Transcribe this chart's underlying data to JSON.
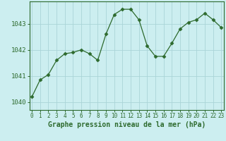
{
  "x": [
    0,
    1,
    2,
    3,
    4,
    5,
    6,
    7,
    8,
    9,
    10,
    11,
    12,
    13,
    14,
    15,
    16,
    17,
    18,
    19,
    20,
    21,
    22,
    23
  ],
  "y": [
    1040.2,
    1040.85,
    1041.05,
    1041.6,
    1041.85,
    1041.9,
    1042.0,
    1041.85,
    1041.6,
    1042.6,
    1043.35,
    1043.55,
    1043.55,
    1043.15,
    1042.15,
    1041.75,
    1041.75,
    1042.25,
    1042.8,
    1043.05,
    1043.15,
    1043.4,
    1043.15,
    1042.85
  ],
  "line_color": "#2d6a2d",
  "marker": "D",
  "marker_size": 2.5,
  "bg_color": "#cceef0",
  "grid_color": "#aad4d8",
  "xlabel": "Graphe pression niveau de la mer (hPa)",
  "xlabel_color": "#2d6a2d",
  "tick_color": "#2d6a2d",
  "spine_color": "#2d6a2d",
  "ylim": [
    1039.7,
    1043.85
  ],
  "yticks": [
    1040,
    1041,
    1042,
    1043
  ],
  "xlim": [
    -0.3,
    23.3
  ],
  "xtick_labels": [
    "0",
    "1",
    "2",
    "3",
    "4",
    "5",
    "6",
    "7",
    "8",
    "9",
    "10",
    "11",
    "12",
    "13",
    "14",
    "15",
    "16",
    "17",
    "18",
    "19",
    "20",
    "21",
    "22",
    "23"
  ],
  "ytick_fontsize": 6.5,
  "xtick_fontsize": 5.5,
  "xlabel_fontsize": 7.0
}
